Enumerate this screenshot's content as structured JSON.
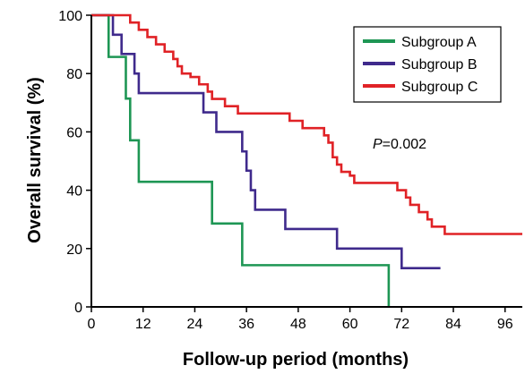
{
  "chart_data": {
    "type": "line",
    "step": true,
    "xlabel": "Follow-up period (months)",
    "ylabel": "Overall survival (%)",
    "xlim": [
      0,
      100
    ],
    "ylim": [
      0,
      100
    ],
    "xticks": [
      0,
      12,
      24,
      36,
      48,
      60,
      72,
      84,
      96
    ],
    "yticks": [
      0,
      20,
      40,
      60,
      80,
      100
    ],
    "grid": false,
    "legend_position": "top-right",
    "annotation": {
      "italic": "P",
      "text": "=0.002"
    },
    "series": [
      {
        "name": "Subgroup A",
        "color": "#1e9654",
        "x": [
          0,
          4,
          8,
          9,
          10,
          11,
          28,
          35,
          69,
          69
        ],
        "y": [
          100,
          85.7,
          71.4,
          57.1,
          57.1,
          42.9,
          28.6,
          14.3,
          14.3,
          0
        ]
      },
      {
        "name": "Subgroup B",
        "color": "#3f2a8c",
        "x": [
          0,
          5,
          7,
          9,
          10,
          11,
          26,
          29,
          35,
          36,
          37,
          38,
          45,
          57,
          72,
          81
        ],
        "y": [
          100,
          93.3,
          86.7,
          86.7,
          80,
          73.3,
          66.7,
          60,
          53.3,
          46.7,
          40,
          33.3,
          26.7,
          20,
          13.3,
          13.3
        ]
      },
      {
        "name": "Subgroup C",
        "color": "#e02226",
        "x": [
          0,
          9,
          11,
          13,
          15,
          17,
          19,
          20,
          21,
          23,
          25,
          27,
          28,
          31,
          34,
          35,
          37,
          46,
          49,
          54,
          55,
          56,
          57,
          58,
          60,
          61,
          63,
          71,
          73,
          74,
          76,
          78,
          79,
          80,
          82,
          100
        ],
        "y": [
          100,
          97.5,
          95,
          92.5,
          90,
          87.5,
          85,
          82.5,
          80,
          78.8,
          76.3,
          73.8,
          71.3,
          68.8,
          66.3,
          66.3,
          66.3,
          63.8,
          61.3,
          58.8,
          56.3,
          51.3,
          48.8,
          46.3,
          45,
          42.5,
          42.5,
          40,
          37.5,
          35,
          32.5,
          30,
          27.5,
          27.5,
          25,
          25
        ]
      }
    ]
  }
}
